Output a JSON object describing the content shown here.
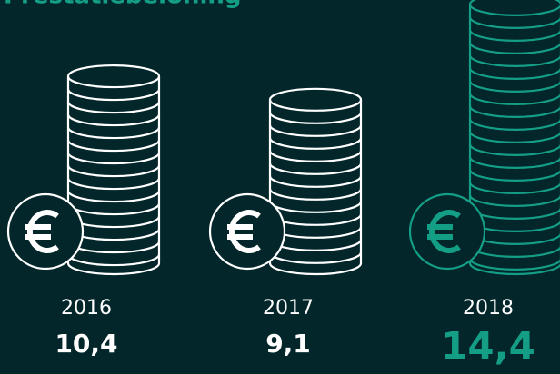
{
  "chart_data": {
    "type": "pictograph",
    "title": "Prestatiebeloning",
    "categories": [
      "2016",
      "2017",
      "2018"
    ],
    "values": [
      10.4,
      9.1,
      14.4
    ],
    "value_labels": [
      "10,4",
      "9,1",
      "14,4"
    ],
    "colors": [
      "#ffffff",
      "#ffffff",
      "#159e86"
    ]
  }
}
